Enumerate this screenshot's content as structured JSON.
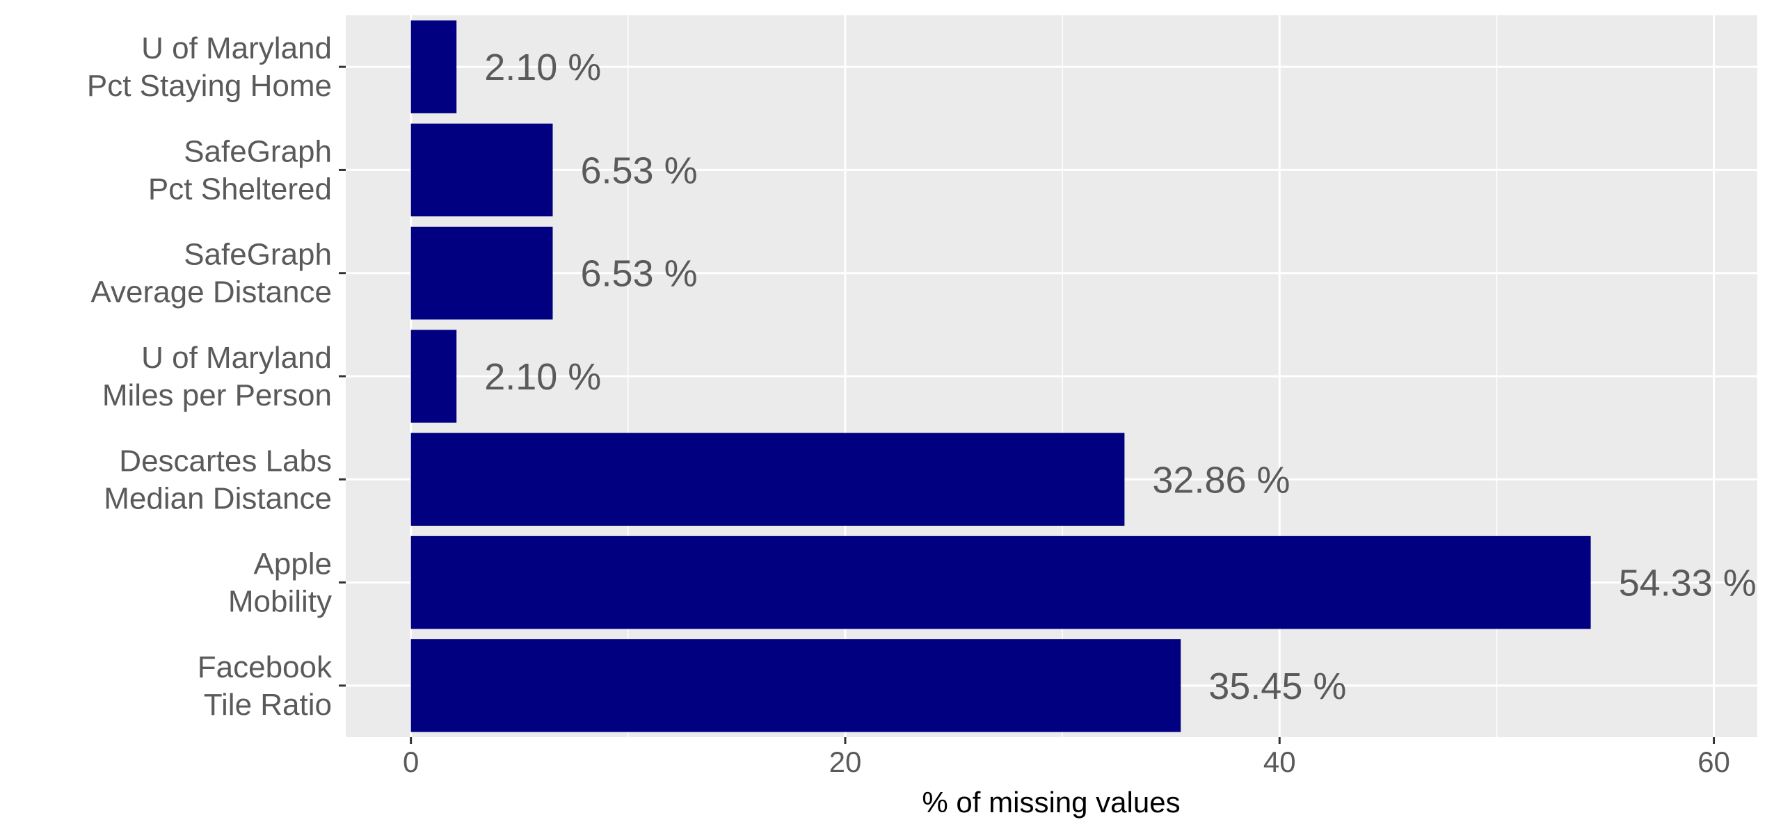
{
  "chart_data": {
    "type": "bar",
    "orientation": "horizontal",
    "title": "",
    "xlabel": "% of missing values",
    "ylabel": "",
    "xlim": [
      -3,
      62
    ],
    "x_ticks": [
      0,
      20,
      40,
      60
    ],
    "grid": true,
    "bar_color": "#000080",
    "panel_color": "#ebebeb",
    "categories": [
      [
        "U of Maryland",
        "Pct Staying Home"
      ],
      [
        "SafeGraph",
        "Pct Sheltered"
      ],
      [
        "SafeGraph",
        "Average Distance"
      ],
      [
        "U of Maryland",
        "Miles per Person"
      ],
      [
        "Descartes Labs",
        "Median Distance"
      ],
      [
        "Apple",
        "Mobility"
      ],
      [
        "Facebook",
        "Tile Ratio"
      ]
    ],
    "values": [
      2.1,
      6.53,
      6.53,
      2.1,
      32.86,
      54.33,
      35.45
    ],
    "value_labels": [
      "2.10 %",
      "6.53 %",
      "6.53 %",
      "2.10 %",
      "32.86 %",
      "54.33 %",
      "35.45 %"
    ]
  }
}
